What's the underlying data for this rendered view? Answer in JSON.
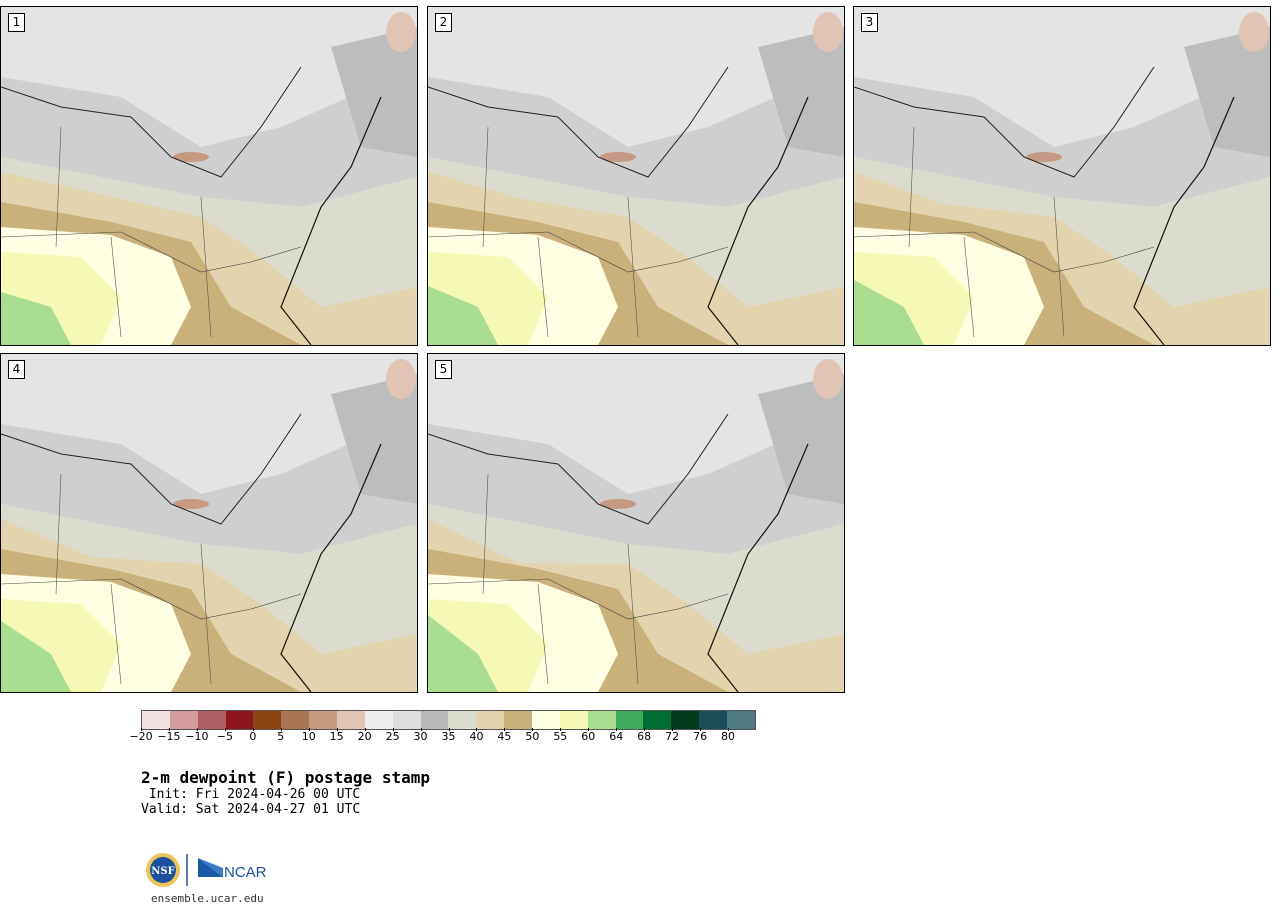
{
  "panels": [
    {
      "label": "1"
    },
    {
      "label": "2"
    },
    {
      "label": "3"
    },
    {
      "label": "4"
    },
    {
      "label": "5"
    }
  ],
  "colorbar": {
    "colors": [
      "#f1e1e1",
      "#d29b9e",
      "#ae5d62",
      "#8c1520",
      "#8a4512",
      "#a97451",
      "#c49a82",
      "#e0c5b6",
      "#ececec",
      "#dedede",
      "#b9b9b9",
      "#dcdccf",
      "#e1d4ae",
      "#c9b27a",
      "#fefee2",
      "#f5f9b3",
      "#a9dd8f",
      "#41ab5d",
      "#006d32",
      "#003d1f",
      "#1b4f58",
      "#4e7c80"
    ],
    "ticks": [
      "−20",
      "−15",
      "−10",
      "−5",
      "0",
      "5",
      "10",
      "15",
      "20",
      "25",
      "30",
      "35",
      "40",
      "45",
      "50",
      "55",
      "60",
      "64",
      "68",
      "72",
      "76",
      "80"
    ]
  },
  "title": "2-m dewpoint (F) postage stamp",
  "init": " Init: Fri 2024-04-26 00 UTC",
  "valid": "Valid: Sat 2024-04-27 01 UTC",
  "logo": {
    "nsf": "NSF",
    "ncar": "NCAR"
  },
  "url": "ensemble.ucar.edu"
}
